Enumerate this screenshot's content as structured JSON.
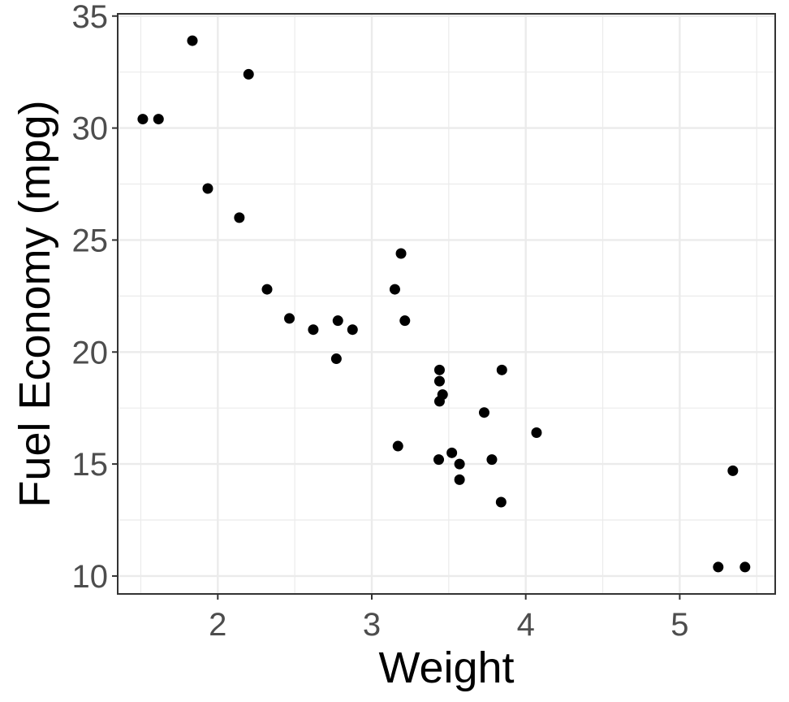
{
  "chart_data": {
    "type": "scatter",
    "title": "",
    "xlabel": "Weight",
    "ylabel": "Fuel Economy (mpg)",
    "xlim": [
      1.35,
      5.62
    ],
    "ylim": [
      9.2,
      35.1
    ],
    "x_major_ticks": [
      2,
      3,
      4,
      5
    ],
    "x_minor_ticks": [
      1.5,
      2.5,
      3.5,
      4.5,
      5.5
    ],
    "y_major_ticks": [
      10,
      15,
      20,
      25,
      30,
      35
    ],
    "y_minor_ticks": [
      12.5,
      17.5,
      22.5,
      27.5,
      32.5
    ],
    "x_tick_labels": [
      "2",
      "3",
      "4",
      "5"
    ],
    "y_tick_labels": [
      "10",
      "15",
      "20",
      "25",
      "30",
      "35"
    ],
    "grid": true,
    "theme": "bw",
    "point_color": "#000000",
    "series": [
      {
        "points": [
          {
            "x": 1.513,
            "y": 30.4
          },
          {
            "x": 1.615,
            "y": 30.4
          },
          {
            "x": 1.835,
            "y": 33.9
          },
          {
            "x": 1.935,
            "y": 27.3
          },
          {
            "x": 2.14,
            "y": 26.0
          },
          {
            "x": 2.2,
            "y": 32.4
          },
          {
            "x": 2.32,
            "y": 22.8
          },
          {
            "x": 2.465,
            "y": 21.5
          },
          {
            "x": 2.62,
            "y": 21.0
          },
          {
            "x": 2.77,
            "y": 19.7
          },
          {
            "x": 2.78,
            "y": 21.4
          },
          {
            "x": 2.875,
            "y": 21.0
          },
          {
            "x": 3.15,
            "y": 22.8
          },
          {
            "x": 3.17,
            "y": 15.8
          },
          {
            "x": 3.19,
            "y": 24.4
          },
          {
            "x": 3.215,
            "y": 21.4
          },
          {
            "x": 3.435,
            "y": 15.2
          },
          {
            "x": 3.44,
            "y": 18.7
          },
          {
            "x": 3.44,
            "y": 19.2
          },
          {
            "x": 3.44,
            "y": 17.8
          },
          {
            "x": 3.46,
            "y": 18.1
          },
          {
            "x": 3.52,
            "y": 15.5
          },
          {
            "x": 3.57,
            "y": 15.0
          },
          {
            "x": 3.57,
            "y": 14.3
          },
          {
            "x": 3.73,
            "y": 17.3
          },
          {
            "x": 3.78,
            "y": 15.2
          },
          {
            "x": 3.84,
            "y": 13.3
          },
          {
            "x": 3.845,
            "y": 19.2
          },
          {
            "x": 4.07,
            "y": 16.4
          },
          {
            "x": 5.25,
            "y": 10.4
          },
          {
            "x": 5.345,
            "y": 14.7
          },
          {
            "x": 5.424,
            "y": 10.4
          }
        ]
      }
    ]
  }
}
